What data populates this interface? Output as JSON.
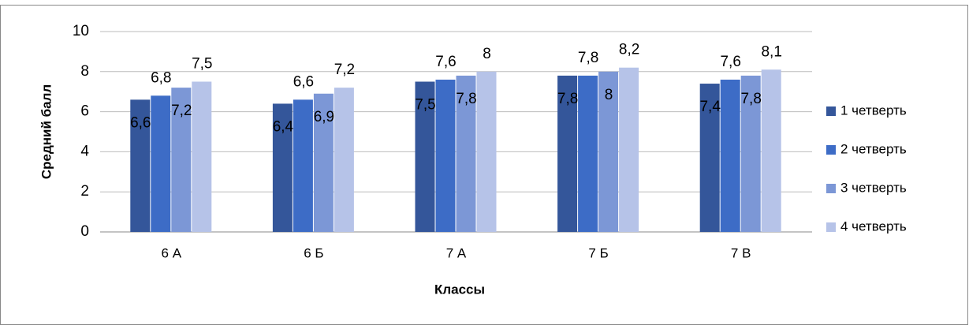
{
  "chart_data": {
    "type": "bar",
    "y_label": "Средний балл",
    "x_label": "Классы",
    "categories": [
      "6 А",
      "6 Б",
      "7 А",
      "7 Б",
      "7 В"
    ],
    "series": [
      {
        "name": "1 четверть",
        "color": "#34569a",
        "values": [
          6.6,
          6.4,
          7.5,
          7.8,
          7.4
        ],
        "value_labels": [
          "6,6",
          "6,4",
          "7,5",
          "7,8",
          "7,4"
        ]
      },
      {
        "name": "2 четверть",
        "color": "#3d6cc6",
        "values": [
          6.8,
          6.6,
          7.6,
          7.8,
          7.6
        ],
        "value_labels": [
          "6,8",
          "6,6",
          "7,6",
          "7,8",
          "7,6"
        ]
      },
      {
        "name": "3 четверть",
        "color": "#7c97d6",
        "values": [
          7.2,
          6.9,
          7.8,
          8,
          7.8
        ],
        "value_labels": [
          "7,2",
          "6,9",
          "7,8",
          "8",
          "7,8"
        ]
      },
      {
        "name": "4 четверть",
        "color": "#b6c3e8",
        "values": [
          7.5,
          7.2,
          8,
          8.2,
          8.1
        ],
        "value_labels": [
          "7,5",
          "7,2",
          "8",
          "8,2",
          "8,1"
        ]
      }
    ],
    "ylim": [
      0,
      10
    ],
    "yticks": [
      0,
      2,
      4,
      6,
      8,
      10
    ],
    "grid": true,
    "legend": "right"
  }
}
